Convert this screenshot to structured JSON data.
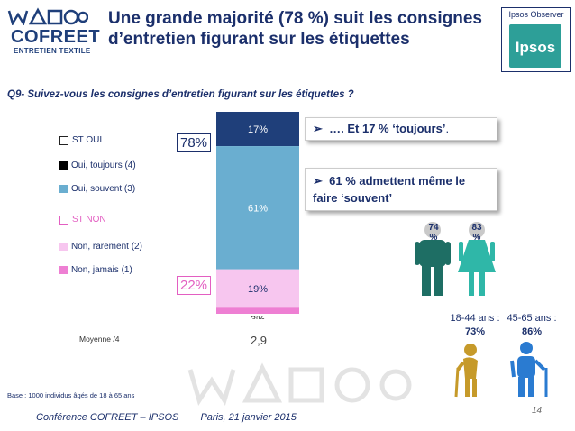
{
  "logo": {
    "name": "COFREET",
    "subtitle": "ENTRETIEN TEXTILE"
  },
  "title": "Une grande majorité  (78 %) suit les consignes d’entretien figurant sur les étiquettes",
  "ipsos": {
    "observer_label": "Ipsos Observer",
    "logo_text": "Ipsos"
  },
  "question": "Q9- Suivez-vous les consignes d’entretien figurant sur les étiquettes ?",
  "legend": {
    "st_oui": "ST OUI",
    "oui_toujours": "Oui, toujours (4)",
    "oui_souvent": "Oui, souvent (3)",
    "st_non": "ST NON",
    "non_rarement": "Non, rarement (2)",
    "non_jamais": "Non, jamais (1)"
  },
  "totals": {
    "oui": "78%",
    "non": "22%"
  },
  "chart_data": {
    "type": "bar",
    "stacked": true,
    "categories": [
      ""
    ],
    "series": [
      {
        "name": "Oui, toujours (4)",
        "values": [
          17
        ],
        "label": "17%",
        "color": "#1f3f7a"
      },
      {
        "name": "Oui, souvent (3)",
        "values": [
          61
        ],
        "label": "61%",
        "color": "#6aaed0"
      },
      {
        "name": "Non, rarement (2)",
        "values": [
          19
        ],
        "label": "19%",
        "color": "#f7c6ef"
      },
      {
        "name": "Non, jamais (1)",
        "values": [
          3
        ],
        "label": "3%",
        "color": "#ee7fd3"
      }
    ],
    "ylim": [
      0,
      100
    ]
  },
  "moyenne": {
    "label": "Moyenne /4",
    "value": "2,9"
  },
  "callouts": {
    "toujours": "…. Et 17 % ‘toujours’",
    "toujours_period": ".",
    "souvent_line1": "61 % admettent même le",
    "souvent_line2": "faire ‘souvent’"
  },
  "gender": {
    "male": "74 %",
    "female": "83 %"
  },
  "ages": [
    {
      "label": "18-44 ans :",
      "value": "73%"
    },
    {
      "label": "45-65 ans :",
      "value": "86%"
    }
  ],
  "footer": {
    "base": "Base : 1000 individus âgés de 18 à 65 ans",
    "conference": "Conférence COFREET – IPSOS",
    "date": "Paris, 21 janvier 2015",
    "page": "14"
  },
  "colors": {
    "navy": "#1b2f6b",
    "teal": "#1e6e64",
    "pink": "#e35fc2"
  }
}
